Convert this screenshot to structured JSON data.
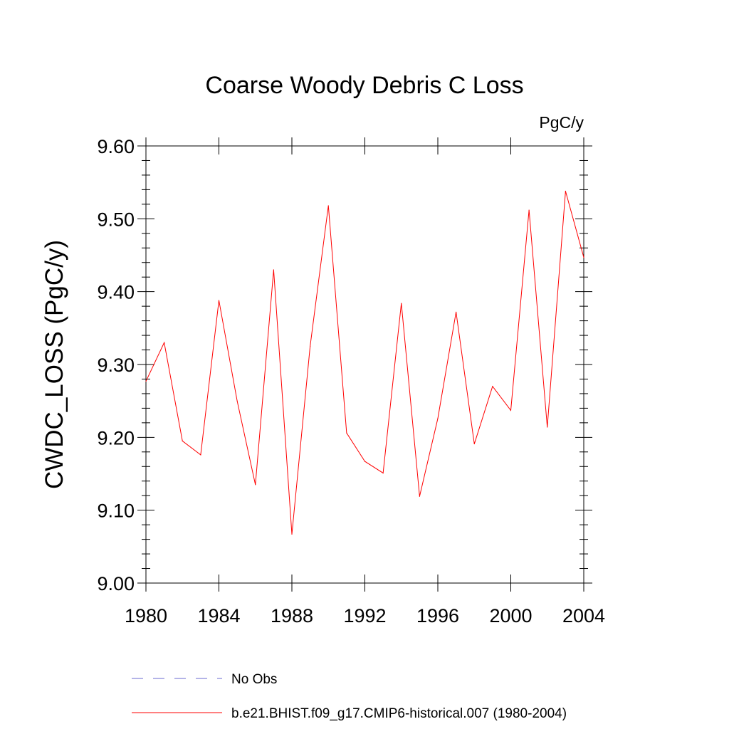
{
  "chart_data": {
    "type": "line",
    "title": "Coarse Woody Debris C Loss",
    "units_label": "PgC/y",
    "ylabel": "CWDC_LOSS  (PgC/y)",
    "xlabel": "",
    "xlim": [
      1980,
      2004
    ],
    "ylim": [
      9.0,
      9.6
    ],
    "x_ticks": [
      "1980",
      "1984",
      "1988",
      "1992",
      "1996",
      "2000",
      "2004"
    ],
    "y_ticks": [
      "9.00",
      "9.10",
      "9.20",
      "9.30",
      "9.40",
      "9.50",
      "9.60"
    ],
    "grid": false,
    "legend_position": "bottom",
    "series": [
      {
        "name": "b.e21.BHIST.f09_g17.CMIP6-historical.007 (1980-2004)",
        "color": "#ff0000",
        "style": "solid",
        "x": [
          1980,
          1981,
          1982,
          1983,
          1984,
          1985,
          1986,
          1987,
          1988,
          1989,
          1990,
          1991,
          1992,
          1993,
          1994,
          1995,
          1996,
          1997,
          1998,
          1999,
          2000,
          2001,
          2002,
          2003,
          2004
        ],
        "values": [
          9.277,
          9.33,
          9.195,
          9.176,
          9.388,
          9.25,
          9.135,
          9.43,
          9.067,
          9.325,
          9.518,
          9.206,
          9.167,
          9.151,
          9.384,
          9.119,
          9.226,
          9.372,
          9.191,
          9.27,
          9.237,
          9.512,
          9.214,
          9.538,
          9.447
        ]
      }
    ],
    "legend": [
      {
        "label": "No Obs",
        "color": "#6a6ad0",
        "style": "dashed"
      },
      {
        "label": "b.e21.BHIST.f09_g17.CMIP6-historical.007 (1980-2004)",
        "color": "#ff0000",
        "style": "solid"
      }
    ]
  }
}
